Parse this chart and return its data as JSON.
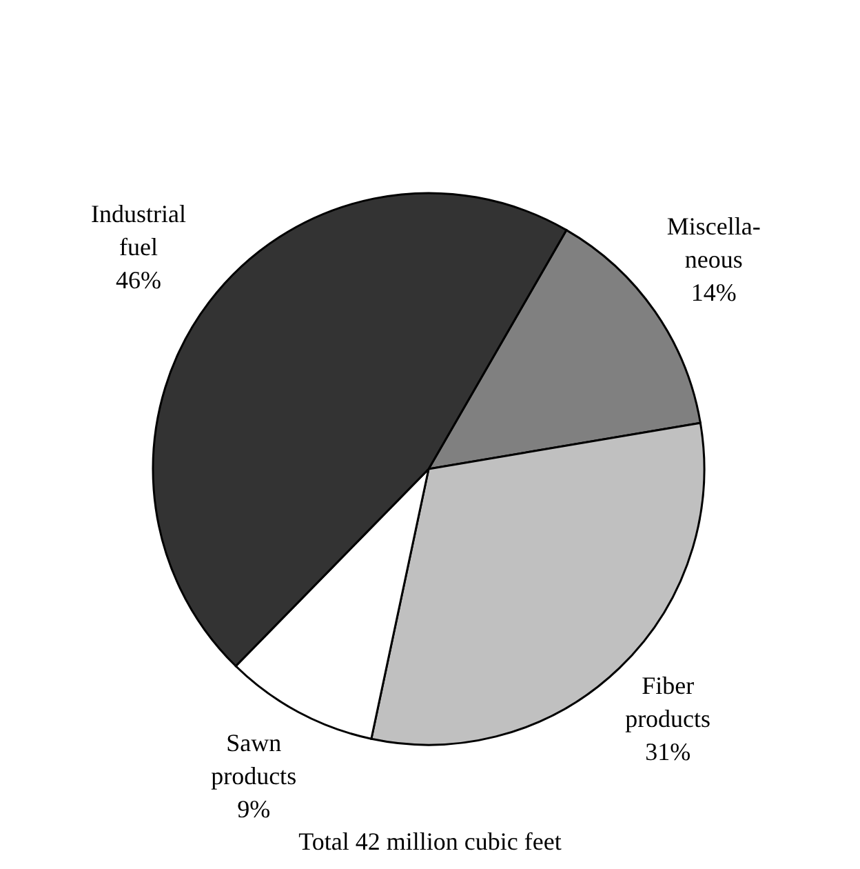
{
  "chart_data": {
    "type": "pie",
    "categories": [
      "Miscella-\nneous",
      "Fiber\nproducts",
      "Sawn\nproducts",
      "Industrial\nfuel"
    ],
    "values": [
      14,
      31,
      9,
      46
    ],
    "colors": [
      "#808080",
      "#c0c0c0",
      "#ffffff",
      "#333333"
    ],
    "value_labels": [
      "14%",
      "31%",
      "9%",
      "46%"
    ],
    "annotations": [
      "Total 42 million cubic feet"
    ],
    "legend": false
  }
}
